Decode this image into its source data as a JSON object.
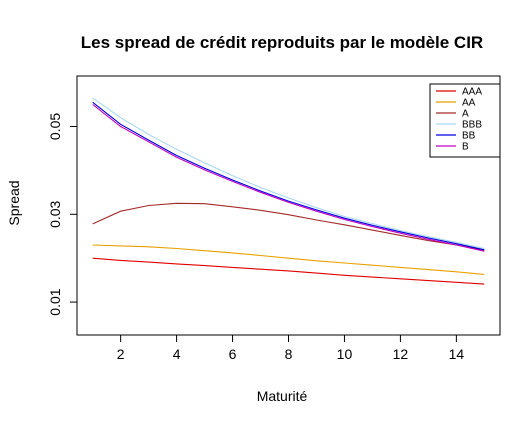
{
  "chart_data": {
    "type": "line",
    "title": "Les spread de crédit reproduits par le modèle CIR",
    "xlabel": "Maturité",
    "ylabel": "Spread",
    "xlim": [
      0.44,
      15.56
    ],
    "ylim": [
      0.0025,
      0.0615
    ],
    "x_ticks": [
      2,
      4,
      6,
      8,
      10,
      12,
      14
    ],
    "y_ticks": [
      0.01,
      0.03,
      0.05
    ],
    "y_tick_labels": [
      "0.01",
      "0.03",
      "0.05"
    ],
    "grid": false,
    "legend_position": "top-right",
    "x": [
      1,
      2,
      3,
      4,
      5,
      6,
      7,
      8,
      9,
      10,
      11,
      12,
      13,
      14,
      15
    ],
    "series": [
      {
        "name": "AAA",
        "color": "#e00000",
        "values": [
          0.02,
          0.0195,
          0.0191,
          0.0187,
          0.0183,
          0.0179,
          0.0175,
          0.0171,
          0.0166,
          0.0161,
          0.0157,
          0.0153,
          0.0149,
          0.0145,
          0.0141
        ]
      },
      {
        "name": "AA",
        "color": "#e8a000",
        "values": [
          0.023,
          0.0228,
          0.0226,
          0.0222,
          0.0217,
          0.0212,
          0.0206,
          0.02,
          0.0194,
          0.0189,
          0.0184,
          0.0179,
          0.0174,
          0.0169,
          0.0163
        ]
      },
      {
        "name": "A",
        "color": "#a52a2a",
        "values": [
          0.0278,
          0.0307,
          0.032,
          0.0325,
          0.0324,
          0.0317,
          0.0309,
          0.0299,
          0.0287,
          0.0276,
          0.0264,
          0.0252,
          0.024,
          0.023,
          0.0218
        ]
      },
      {
        "name": "BBB",
        "color": "#a8d8f0",
        "values": [
          0.0565,
          0.052,
          0.0482,
          0.0448,
          0.0417,
          0.0388,
          0.0361,
          0.0337,
          0.0315,
          0.0295,
          0.0279,
          0.0263,
          0.0249,
          0.0236,
          0.0222
        ]
      },
      {
        "name": "BB",
        "color": "#0000e0",
        "values": [
          0.0555,
          0.0505,
          0.0469,
          0.0434,
          0.0405,
          0.0378,
          0.0353,
          0.033,
          0.031,
          0.0291,
          0.0275,
          0.026,
          0.0246,
          0.0233,
          0.0219
        ]
      },
      {
        "name": "B",
        "color": "#c000c0",
        "values": [
          0.055,
          0.05,
          0.0465,
          0.043,
          0.0401,
          0.0375,
          0.035,
          0.0327,
          0.0307,
          0.0288,
          0.0272,
          0.0257,
          0.0243,
          0.023,
          0.0216
        ]
      }
    ]
  }
}
